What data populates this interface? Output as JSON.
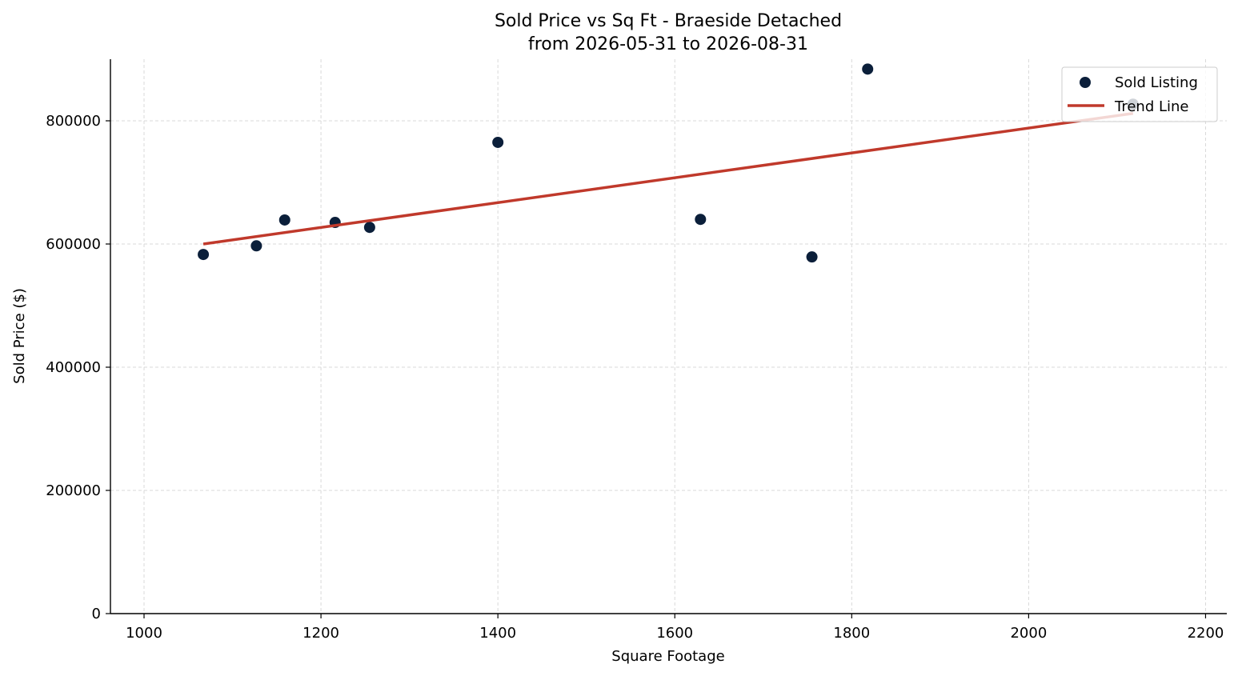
{
  "chart_data": {
    "type": "scatter",
    "title": "Sold Price vs Sq Ft - Braeside Detached",
    "subtitle": "from 2026-05-31 to 2026-08-31",
    "xlabel": "Square Footage",
    "ylabel": "Sold Price ($)",
    "xlim": [
      962,
      2224
    ],
    "ylim": [
      0,
      900000
    ],
    "xticks": [
      1000,
      1200,
      1400,
      1600,
      1800,
      2000,
      2200
    ],
    "yticks": [
      0,
      200000,
      400000,
      600000,
      800000
    ],
    "grid": true,
    "legend_position": "top-right",
    "series": [
      {
        "name": "Sold Listing",
        "kind": "scatter",
        "color": "#0b1f3a",
        "points": [
          {
            "x": 1067,
            "y": 583000
          },
          {
            "x": 1127,
            "y": 597000
          },
          {
            "x": 1159,
            "y": 639000
          },
          {
            "x": 1216,
            "y": 635000
          },
          {
            "x": 1255,
            "y": 627000
          },
          {
            "x": 1400,
            "y": 765000
          },
          {
            "x": 1629,
            "y": 640000
          },
          {
            "x": 1755,
            "y": 579000
          },
          {
            "x": 1818,
            "y": 884000
          },
          {
            "x": 2118,
            "y": 827000
          }
        ]
      },
      {
        "name": "Trend Line",
        "kind": "line",
        "color": "#c0392b",
        "points": [
          {
            "x": 1067,
            "y": 600000
          },
          {
            "x": 2118,
            "y": 812000
          }
        ]
      }
    ]
  }
}
